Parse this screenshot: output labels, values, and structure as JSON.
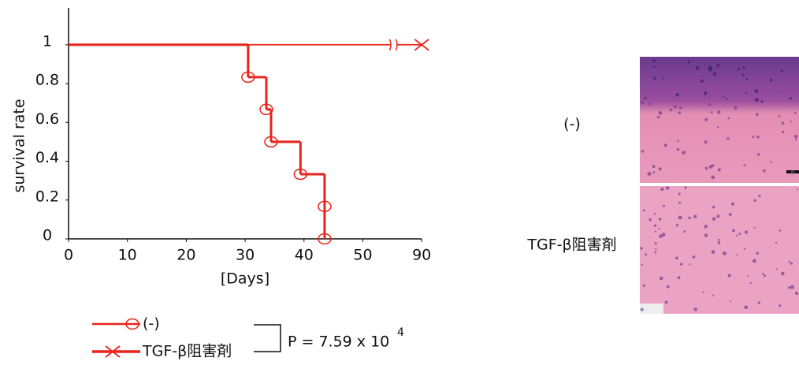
{
  "chart_data": {
    "type": "step",
    "y_label": "survival rate",
    "x_label": "[Days]",
    "series": [
      {
        "name": "(-)",
        "color": "#e8241c",
        "marker": "circle",
        "x": [
          0,
          30.5,
          33.6,
          34.4,
          39.4,
          43.5,
          43.5
        ],
        "values": [
          1,
          0.833,
          0.667,
          0.5,
          0.333,
          0.167,
          0
        ]
      },
      {
        "name": "TGF-β阻害剤",
        "color": "#e8241c",
        "marker": "cross",
        "x": [
          0,
          90
        ],
        "values": [
          1,
          1
        ]
      }
    ],
    "xticks": [
      0,
      10,
      20,
      30,
      40,
      50,
      90
    ],
    "ylim": [
      0,
      1.19
    ],
    "yticks": [
      0,
      0.2,
      0.4,
      0.6,
      0.8,
      1
    ],
    "p_value": {
      "text": "P = 7.59 x 10",
      "superscript": "4"
    }
  },
  "image_labels": [
    "(-)",
    "TGF-β阻害剤"
  ]
}
